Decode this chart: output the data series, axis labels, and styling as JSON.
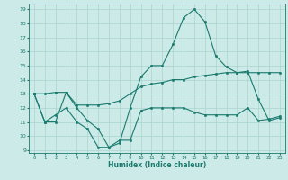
{
  "xlabel": "Humidex (Indice chaleur)",
  "xlim": [
    -0.5,
    23.5
  ],
  "ylim": [
    8.8,
    19.4
  ],
  "yticks": [
    9,
    10,
    11,
    12,
    13,
    14,
    15,
    16,
    17,
    18,
    19
  ],
  "xticks": [
    0,
    1,
    2,
    3,
    4,
    5,
    6,
    7,
    8,
    9,
    10,
    11,
    12,
    13,
    14,
    15,
    16,
    17,
    18,
    19,
    20,
    21,
    22,
    23
  ],
  "bg_color": "#cceae7",
  "grid_color": "#aad4d0",
  "line_color": "#1a7a6e",
  "line1_x": [
    0,
    1,
    2,
    3,
    4,
    5,
    6,
    7,
    8,
    9,
    10,
    11,
    12,
    13,
    14,
    15,
    16,
    17,
    18,
    19,
    20,
    21,
    22,
    23
  ],
  "line1_y": [
    13.0,
    11.0,
    11.0,
    13.1,
    12.0,
    11.1,
    10.5,
    9.2,
    9.7,
    9.7,
    11.8,
    12.0,
    12.0,
    12.0,
    12.0,
    11.7,
    11.5,
    11.5,
    11.5,
    11.5,
    12.0,
    11.1,
    11.2,
    11.4
  ],
  "line2_x": [
    0,
    1,
    2,
    3,
    4,
    5,
    6,
    7,
    8,
    9,
    10,
    11,
    12,
    13,
    14,
    15,
    16,
    17,
    18,
    19,
    20,
    21,
    22,
    23
  ],
  "line2_y": [
    13.0,
    13.0,
    13.1,
    13.1,
    12.2,
    12.2,
    12.2,
    12.3,
    12.5,
    13.0,
    13.5,
    13.7,
    13.8,
    14.0,
    14.0,
    14.2,
    14.3,
    14.4,
    14.5,
    14.5,
    14.5,
    14.5,
    14.5,
    14.5
  ],
  "line3_x": [
    0,
    1,
    2,
    3,
    4,
    5,
    6,
    7,
    8,
    9,
    10,
    11,
    12,
    13,
    14,
    15,
    16,
    17,
    18,
    19,
    20,
    21,
    22,
    23
  ],
  "line3_y": [
    13.0,
    11.0,
    11.5,
    12.0,
    11.0,
    10.5,
    9.2,
    9.2,
    9.5,
    12.0,
    14.2,
    15.0,
    15.0,
    16.5,
    18.4,
    19.0,
    18.1,
    15.7,
    14.9,
    14.5,
    14.6,
    12.6,
    11.1,
    11.3
  ]
}
